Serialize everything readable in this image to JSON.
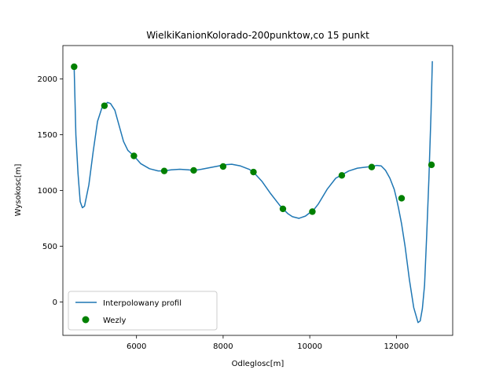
{
  "chart_data": {
    "type": "line",
    "title": "WielkiKanionKolorado-200punktow,co 15 punkt",
    "xlabel": "Odleglosc[m]",
    "ylabel": "Wysokosc[m]",
    "xlim": [
      4300,
      13300
    ],
    "ylim": [
      -300,
      2300
    ],
    "xticks": [
      6000,
      8000,
      10000,
      12000
    ],
    "yticks": [
      0,
      500,
      1000,
      1500,
      2000
    ],
    "legend_position": "lower-left",
    "grid": false,
    "series": [
      {
        "name": "Interpolowany profil",
        "kind": "line",
        "color": "#1f77b4",
        "x": [
          4560,
          4600,
          4650,
          4700,
          4750,
          4800,
          4900,
          5000,
          5100,
          5200,
          5260,
          5330,
          5400,
          5500,
          5600,
          5700,
          5800,
          5940,
          6100,
          6300,
          6500,
          6640,
          6800,
          7000,
          7200,
          7320,
          7500,
          7700,
          7900,
          8000,
          8200,
          8400,
          8600,
          8700,
          8900,
          9100,
          9300,
          9380,
          9500,
          9600,
          9750,
          9900,
          10000,
          10060,
          10200,
          10400,
          10600,
          10740,
          10900,
          11100,
          11300,
          11430,
          11550,
          11650,
          11750,
          11850,
          11950,
          12000,
          12050,
          12120,
          12200,
          12300,
          12400,
          12500,
          12550,
          12600,
          12650,
          12700,
          12750,
          12800,
          12830
        ],
        "y": [
          2110,
          1500,
          1150,
          900,
          845,
          860,
          1050,
          1350,
          1620,
          1740,
          1760,
          1790,
          1780,
          1720,
          1580,
          1440,
          1360,
          1310,
          1240,
          1195,
          1175,
          1175,
          1185,
          1190,
          1185,
          1180,
          1190,
          1205,
          1220,
          1230,
          1235,
          1220,
          1190,
          1165,
          1080,
          970,
          870,
          835,
          790,
          765,
          750,
          770,
          800,
          810,
          880,
          1010,
          1110,
          1140,
          1175,
          1200,
          1210,
          1215,
          1225,
          1220,
          1180,
          1110,
          1010,
          930,
          840,
          700,
          500,
          200,
          -50,
          -185,
          -170,
          -60,
          150,
          600,
          1100,
          1700,
          2160
        ]
      },
      {
        "name": "Wezly",
        "kind": "scatter",
        "color": "#008000",
        "x": [
          4560,
          5260,
          5940,
          6640,
          7320,
          8000,
          8700,
          9380,
          10060,
          10740,
          11430,
          12120,
          12810
        ],
        "y": [
          2110,
          1760,
          1310,
          1175,
          1180,
          1215,
          1165,
          835,
          810,
          1135,
          1210,
          930,
          1230
        ]
      }
    ]
  }
}
